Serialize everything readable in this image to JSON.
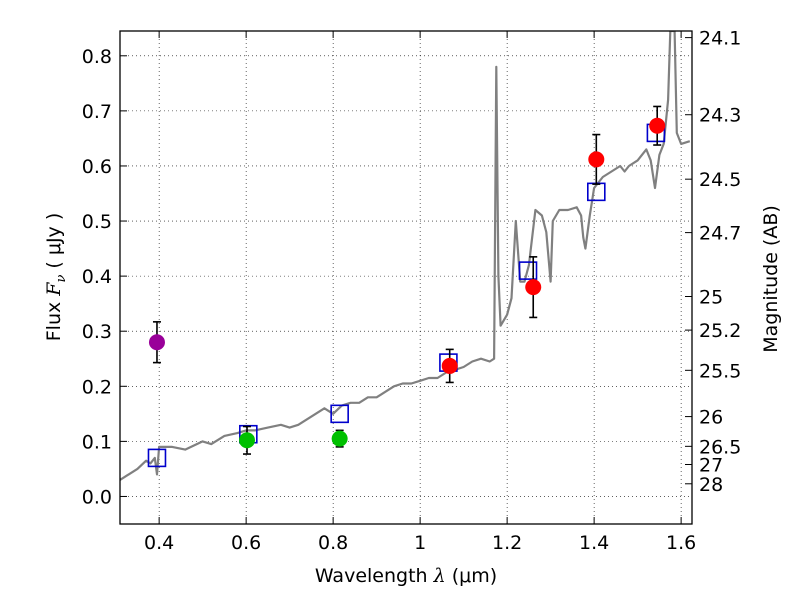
{
  "chart_data": {
    "type": "scatter",
    "xlabel": {
      "prefix": "Wavelength  ",
      "symbol": "λ",
      "suffix": " (μm)"
    },
    "ylabel": {
      "prefix": "Flux  ",
      "symbol": "F",
      "subscript": "ν",
      "suffix": "  ( μJy )"
    },
    "y2label": "Magnitude (AB)",
    "xlim": [
      0.31,
      1.625
    ],
    "ylim": [
      -0.05,
      0.845
    ],
    "grid": true,
    "x_ticks": [
      {
        "value": 0.4,
        "label": "0.4"
      },
      {
        "value": 0.6,
        "label": "0.6"
      },
      {
        "value": 0.8,
        "label": "0.8"
      },
      {
        "value": 1.0,
        "label": "1"
      },
      {
        "value": 1.2,
        "label": "1.2"
      },
      {
        "value": 1.4,
        "label": "1.4"
      },
      {
        "value": 1.6,
        "label": "1.6"
      }
    ],
    "y_ticks": [
      {
        "value": 0.0,
        "label": "0.0"
      },
      {
        "value": 0.1,
        "label": "0.1"
      },
      {
        "value": 0.2,
        "label": "0.2"
      },
      {
        "value": 0.3,
        "label": "0.3"
      },
      {
        "value": 0.4,
        "label": "0.4"
      },
      {
        "value": 0.5,
        "label": "0.5"
      },
      {
        "value": 0.6,
        "label": "0.6"
      },
      {
        "value": 0.7,
        "label": "0.7"
      },
      {
        "value": 0.8,
        "label": "0.8"
      }
    ],
    "magnitude_ticks": [
      {
        "flux": 0.833,
        "label": "24.1"
      },
      {
        "flux": 0.693,
        "label": "24.3"
      },
      {
        "flux": 0.576,
        "label": "24.5"
      },
      {
        "flux": 0.479,
        "label": "24.7"
      },
      {
        "flux": 0.363,
        "label": "25"
      },
      {
        "flux": 0.302,
        "label": "25.2"
      },
      {
        "flux": 0.229,
        "label": "25.5"
      },
      {
        "flux": 0.145,
        "label": "26"
      },
      {
        "flux": 0.091,
        "label": "26.5"
      },
      {
        "flux": 0.058,
        "label": "27"
      },
      {
        "flux": 0.023,
        "label": "28"
      }
    ],
    "series": [
      {
        "name": "template_spectrum",
        "kind": "line",
        "color": "#808080",
        "points": [
          [
            0.31,
            0.03
          ],
          [
            0.33,
            0.04
          ],
          [
            0.35,
            0.05
          ],
          [
            0.37,
            0.065
          ],
          [
            0.38,
            0.06
          ],
          [
            0.39,
            0.07
          ],
          [
            0.395,
            0.04
          ],
          [
            0.4,
            0.09
          ],
          [
            0.43,
            0.09
          ],
          [
            0.46,
            0.085
          ],
          [
            0.5,
            0.1
          ],
          [
            0.52,
            0.095
          ],
          [
            0.55,
            0.11
          ],
          [
            0.58,
            0.115
          ],
          [
            0.6,
            0.12
          ],
          [
            0.62,
            0.12
          ],
          [
            0.65,
            0.125
          ],
          [
            0.68,
            0.13
          ],
          [
            0.7,
            0.125
          ],
          [
            0.72,
            0.13
          ],
          [
            0.74,
            0.14
          ],
          [
            0.76,
            0.15
          ],
          [
            0.78,
            0.16
          ],
          [
            0.8,
            0.15
          ],
          [
            0.82,
            0.165
          ],
          [
            0.84,
            0.17
          ],
          [
            0.86,
            0.17
          ],
          [
            0.88,
            0.18
          ],
          [
            0.9,
            0.18
          ],
          [
            0.92,
            0.19
          ],
          [
            0.94,
            0.2
          ],
          [
            0.96,
            0.205
          ],
          [
            0.98,
            0.205
          ],
          [
            1.0,
            0.21
          ],
          [
            1.02,
            0.215
          ],
          [
            1.04,
            0.215
          ],
          [
            1.06,
            0.225
          ],
          [
            1.08,
            0.23
          ],
          [
            1.1,
            0.235
          ],
          [
            1.12,
            0.245
          ],
          [
            1.14,
            0.25
          ],
          [
            1.16,
            0.245
          ],
          [
            1.17,
            0.25
          ],
          [
            1.175,
            0.78
          ],
          [
            1.18,
            0.4
          ],
          [
            1.185,
            0.31
          ],
          [
            1.2,
            0.33
          ],
          [
            1.21,
            0.36
          ],
          [
            1.22,
            0.5
          ],
          [
            1.23,
            0.39
          ],
          [
            1.24,
            0.39
          ],
          [
            1.25,
            0.42
          ],
          [
            1.265,
            0.52
          ],
          [
            1.28,
            0.51
          ],
          [
            1.29,
            0.48
          ],
          [
            1.3,
            0.39
          ],
          [
            1.305,
            0.5
          ],
          [
            1.32,
            0.52
          ],
          [
            1.34,
            0.52
          ],
          [
            1.36,
            0.525
          ],
          [
            1.37,
            0.51
          ],
          [
            1.375,
            0.47
          ],
          [
            1.38,
            0.45
          ],
          [
            1.39,
            0.51
          ],
          [
            1.4,
            0.56
          ],
          [
            1.42,
            0.58
          ],
          [
            1.44,
            0.59
          ],
          [
            1.46,
            0.6
          ],
          [
            1.47,
            0.59
          ],
          [
            1.48,
            0.6
          ],
          [
            1.5,
            0.61
          ],
          [
            1.52,
            0.63
          ],
          [
            1.53,
            0.61
          ],
          [
            1.54,
            0.56
          ],
          [
            1.55,
            0.62
          ],
          [
            1.56,
            0.64
          ],
          [
            1.57,
            0.72
          ],
          [
            1.575,
            0.845
          ],
          [
            1.585,
            0.845
          ],
          [
            1.59,
            0.66
          ],
          [
            1.6,
            0.64
          ],
          [
            1.62,
            0.645
          ]
        ]
      },
      {
        "name": "model_photometry",
        "kind": "open-square",
        "color": "#0000cc",
        "points": [
          [
            0.395,
            0.07
          ],
          [
            0.605,
            0.113
          ],
          [
            0.815,
            0.15
          ],
          [
            1.065,
            0.243
          ],
          [
            1.248,
            0.41
          ],
          [
            1.405,
            0.553
          ],
          [
            1.542,
            0.66
          ]
        ]
      },
      {
        "name": "red_points",
        "kind": "filled-circle",
        "color": "#ff0000",
        "points": [
          {
            "x": 1.068,
            "y": 0.237,
            "err": 0.03
          },
          {
            "x": 1.26,
            "y": 0.38,
            "err": 0.055
          },
          {
            "x": 1.405,
            "y": 0.612,
            "err": 0.045
          },
          {
            "x": 1.545,
            "y": 0.673,
            "err": 0.035
          }
        ]
      },
      {
        "name": "green_points",
        "kind": "filled-circle",
        "color": "#00c000",
        "points": [
          {
            "x": 0.602,
            "y": 0.102,
            "err": 0.025
          },
          {
            "x": 0.815,
            "y": 0.105,
            "err": 0.015
          }
        ]
      },
      {
        "name": "purple_points",
        "kind": "filled-circle",
        "color": "#990099",
        "points": [
          {
            "x": 0.395,
            "y": 0.28,
            "err": 0.037
          }
        ]
      }
    ]
  }
}
